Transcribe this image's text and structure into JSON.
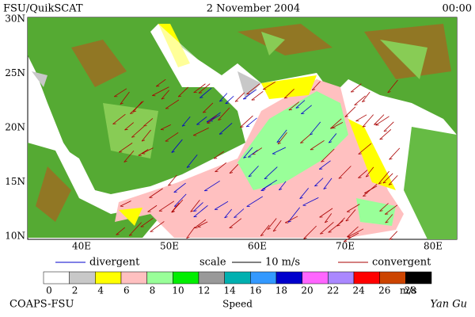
{
  "header": {
    "left": "FSU/QuikSCAT",
    "center": "2 November 2004",
    "right": "00:00"
  },
  "map": {
    "lat_labels": [
      "30N",
      "25N",
      "20N",
      "15N",
      "10N"
    ],
    "lon_labels": [
      "40E",
      "50E",
      "60E",
      "70E",
      "80E"
    ]
  },
  "legend": {
    "divergent": "divergent",
    "scale": "scale",
    "scale_value": "10 m/s",
    "convergent": "convergent",
    "divergent_color": "#0000cc",
    "convergent_color": "#aa0000"
  },
  "colorbar": {
    "ticks": [
      0,
      2,
      4,
      6,
      8,
      10,
      12,
      14,
      16,
      18,
      20,
      22,
      24,
      26,
      28
    ],
    "unit": "m/s",
    "title": "Speed",
    "colors": [
      "#ffffff",
      "#c8c8c8",
      "#ffff00",
      "#ffc0c0",
      "#99ff99",
      "#00ee00",
      "#999999",
      "#00b0b0",
      "#3399ff",
      "#0000cc",
      "#ff66ff",
      "#aa88ff",
      "#ff0000",
      "#cc4400",
      "#000000"
    ]
  },
  "footer": {
    "left": "COAPS-FSU",
    "right": "Yan Gu"
  }
}
